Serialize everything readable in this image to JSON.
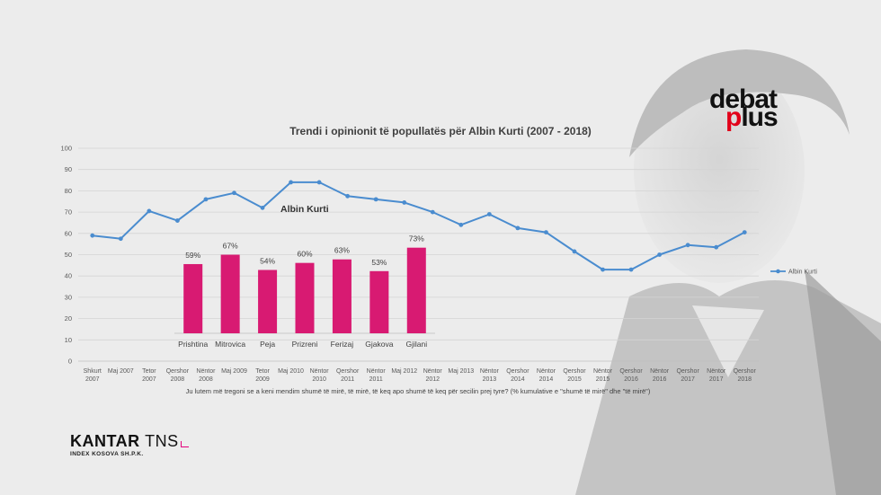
{
  "brand": {
    "debat_logo": "debatplus",
    "kantar_name": "KANTAR",
    "kantar_tns": "TNS",
    "kantar_sub": "INDEX KOSOVA SH.P.K."
  },
  "colors": {
    "line": "#4a8ccf",
    "bar": "#d81a72",
    "grid": "#d4d4d4"
  },
  "chart_data": [
    {
      "type": "line",
      "title": "Trendi i opinionit të popullatës për Albin Kurti (2007 - 2018)",
      "annotation": "Albin Kurti",
      "caption": "Ju lutem më tregoni se a keni mendim shumë të mirë, të mirë, të keq apo shumë të keq për secilin prej tyre? (% kumulative e \"shumë të mirë\" dhe \"të mirë\")",
      "legend": "Albin Kurti",
      "legend_position": "right",
      "ylim": [
        0,
        100
      ],
      "yticks": [
        0,
        10,
        20,
        30,
        40,
        50,
        60,
        70,
        80,
        90,
        100
      ],
      "grid": true,
      "categories": [
        [
          "Shkurt",
          "2007"
        ],
        [
          "Maj 2007"
        ],
        [
          "Tetor",
          "2007"
        ],
        [
          "Qershor",
          "2008"
        ],
        [
          "Nëntor",
          "2008"
        ],
        [
          "Maj 2009"
        ],
        [
          "Tetor",
          "2009"
        ],
        [
          "Maj 2010"
        ],
        [
          "Nëntor",
          "2010"
        ],
        [
          "Qershor",
          "2011"
        ],
        [
          "Nëntor",
          "2011"
        ],
        [
          "Maj 2012"
        ],
        [
          "Nëntor",
          "2012"
        ],
        [
          "Maj 2013"
        ],
        [
          "Nëntor",
          "2013"
        ],
        [
          "Qershor",
          "2014"
        ],
        [
          "Nëntor",
          "2014"
        ],
        [
          "Qershor",
          "2015"
        ],
        [
          "Nëntor",
          "2015"
        ],
        [
          "Qershor",
          "2016"
        ],
        [
          "Nëntor",
          "2016"
        ],
        [
          "Qershor",
          "2017"
        ],
        [
          "Nëntor",
          "2017"
        ],
        [
          "Qershor",
          "2018"
        ]
      ],
      "series": [
        {
          "name": "Albin Kurti",
          "values": [
            59,
            57.5,
            70.5,
            66,
            76,
            79,
            72,
            84,
            84,
            77.5,
            76,
            74.5,
            70,
            64,
            69,
            62.5,
            60.5,
            51.5,
            43,
            43,
            50,
            54.5,
            53.5,
            60.5
          ]
        }
      ]
    },
    {
      "type": "bar",
      "categories": [
        "Prishtina",
        "Mitrovica",
        "Peja",
        "Prizreni",
        "Ferizaj",
        "Gjakova",
        "Gjilani"
      ],
      "values": [
        59,
        67,
        54,
        60,
        63,
        53,
        73
      ],
      "labels": [
        "59%",
        "67%",
        "54%",
        "60%",
        "63%",
        "53%",
        "73%"
      ]
    }
  ]
}
